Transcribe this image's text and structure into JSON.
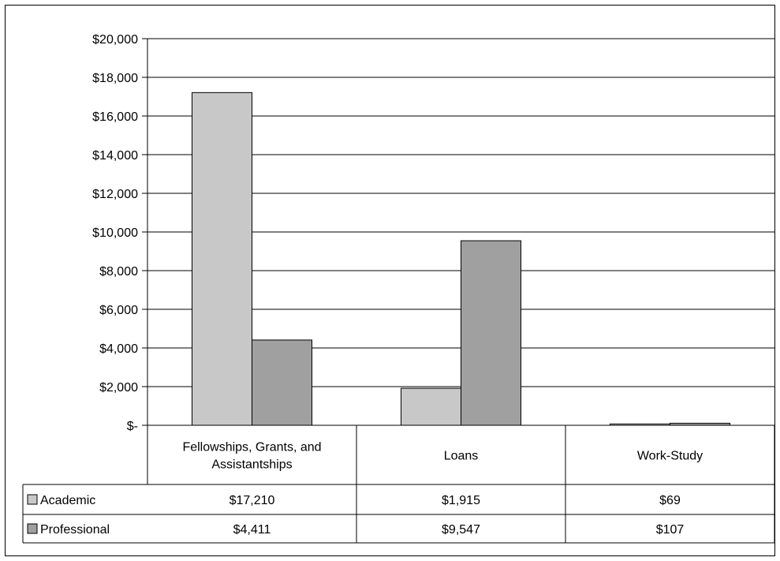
{
  "chart_data": {
    "type": "bar",
    "title": "",
    "xlabel": "",
    "ylabel": "",
    "ylim": [
      0,
      20000
    ],
    "y_ticks": [
      {
        "value": 0,
        "label": "$-"
      },
      {
        "value": 2000,
        "label": "$2,000"
      },
      {
        "value": 4000,
        "label": "$4,000"
      },
      {
        "value": 6000,
        "label": "$6,000"
      },
      {
        "value": 8000,
        "label": "$8,000"
      },
      {
        "value": 10000,
        "label": "$10,000"
      },
      {
        "value": 12000,
        "label": "$12,000"
      },
      {
        "value": 14000,
        "label": "$14,000"
      },
      {
        "value": 16000,
        "label": "$16,000"
      },
      {
        "value": 18000,
        "label": "$18,000"
      },
      {
        "value": 20000,
        "label": "$20,000"
      }
    ],
    "categories": [
      [
        "Fellowships, Grants, and",
        "Assistantships"
      ],
      [
        "Loans"
      ],
      [
        "Work-Study"
      ]
    ],
    "grid": true,
    "legend": "data-table",
    "series": [
      {
        "name": "Academic",
        "color": "#c8c8c8",
        "values": [
          17210,
          1915,
          69
        ],
        "value_labels": [
          "$17,210",
          "$1,915",
          "$69"
        ]
      },
      {
        "name": "Professional",
        "color": "#a0a0a0",
        "values": [
          4411,
          9547,
          107
        ],
        "value_labels": [
          "$4,411",
          "$9,547",
          "$107"
        ]
      }
    ]
  }
}
